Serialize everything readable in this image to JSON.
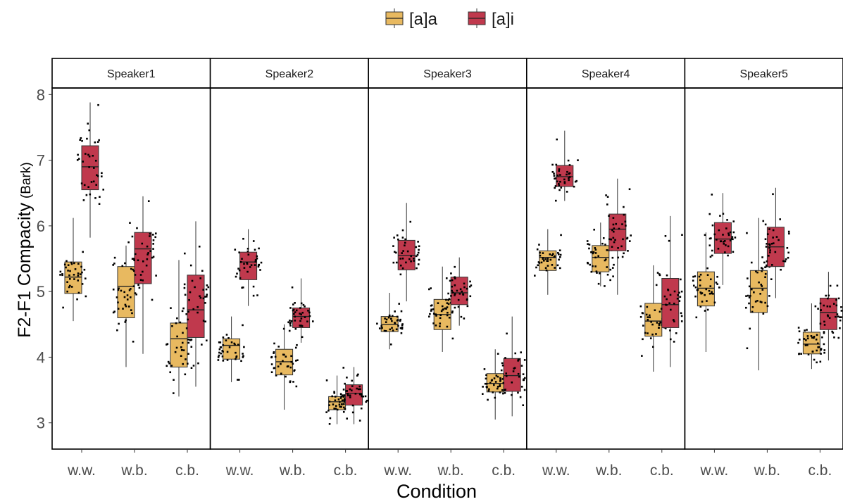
{
  "chart_data": {
    "type": "boxplot",
    "ylabel_main": "F2-F1 Compacity",
    "ylabel_unit": "(Bark)",
    "xlabel": "Condition",
    "ylim": [
      2.6,
      8.1
    ],
    "yticks": [
      3,
      4,
      5,
      6,
      7,
      8
    ],
    "categories": [
      "w.w.",
      "w.b.",
      "c.b."
    ],
    "legend": {
      "position": "top",
      "entries": [
        {
          "label": "[a]a",
          "color": "#E8B960"
        },
        {
          "label": "[a]i",
          "color": "#C0394D"
        }
      ]
    },
    "series_colors": {
      "[a]a": "#E8B960",
      "[a]i": "#C0394D"
    },
    "panels": [
      {
        "title": "Speaker1",
        "boxes": [
          {
            "cat": "w.w.",
            "series": "[a]a",
            "min": 4.55,
            "q1": 4.97,
            "median": 5.22,
            "q3": 5.45,
            "max": 6.12
          },
          {
            "cat": "w.w.",
            "series": "[a]i",
            "min": 5.82,
            "q1": 6.55,
            "median": 6.9,
            "q3": 7.22,
            "max": 7.88
          },
          {
            "cat": "w.b.",
            "series": "[a]a",
            "min": 3.85,
            "q1": 4.6,
            "median": 5.08,
            "q3": 5.38,
            "max": 5.7
          },
          {
            "cat": "w.b.",
            "series": "[a]i",
            "min": 4.05,
            "q1": 5.12,
            "median": 5.65,
            "q3": 5.9,
            "max": 6.45
          },
          {
            "cat": "c.b.",
            "series": "[a]a",
            "min": 3.4,
            "q1": 3.85,
            "median": 4.28,
            "q3": 4.52,
            "max": 5.48
          },
          {
            "cat": "c.b.",
            "series": "[a]i",
            "min": 3.55,
            "q1": 4.3,
            "median": 4.72,
            "q3": 5.25,
            "max": 6.07
          }
        ]
      },
      {
        "title": "Speaker2",
        "boxes": [
          {
            "cat": "w.w.",
            "series": "[a]a",
            "min": 3.62,
            "q1": 3.97,
            "median": 4.18,
            "q3": 4.28,
            "max": 4.62
          },
          {
            "cat": "w.w.",
            "series": "[a]i",
            "min": 4.78,
            "q1": 5.18,
            "median": 5.45,
            "q3": 5.6,
            "max": 5.95
          },
          {
            "cat": "w.b.",
            "series": "[a]a",
            "min": 3.2,
            "q1": 3.73,
            "median": 3.93,
            "q3": 4.12,
            "max": 4.5
          },
          {
            "cat": "w.b.",
            "series": "[a]i",
            "min": 4.22,
            "q1": 4.45,
            "median": 4.62,
            "q3": 4.75,
            "max": 5.2
          },
          {
            "cat": "c.b.",
            "series": "[a]a",
            "min": 2.98,
            "q1": 3.2,
            "median": 3.32,
            "q3": 3.4,
            "max": 3.72
          },
          {
            "cat": "c.b.",
            "series": "[a]i",
            "min": 2.98,
            "q1": 3.27,
            "median": 3.45,
            "q3": 3.58,
            "max": 3.85
          }
        ]
      },
      {
        "title": "Speaker3",
        "boxes": [
          {
            "cat": "w.w.",
            "series": "[a]a",
            "min": 4.12,
            "q1": 4.39,
            "median": 4.5,
            "q3": 4.62,
            "max": 4.98
          },
          {
            "cat": "w.w.",
            "series": "[a]i",
            "min": 4.85,
            "q1": 5.33,
            "median": 5.55,
            "q3": 5.78,
            "max": 6.35
          },
          {
            "cat": "w.b.",
            "series": "[a]a",
            "min": 4.08,
            "q1": 4.42,
            "median": 4.65,
            "q3": 4.88,
            "max": 5.38
          },
          {
            "cat": "w.b.",
            "series": "[a]i",
            "min": 4.48,
            "q1": 4.8,
            "median": 4.98,
            "q3": 5.22,
            "max": 5.52
          },
          {
            "cat": "c.b.",
            "series": "[a]a",
            "min": 3.05,
            "q1": 3.47,
            "median": 3.6,
            "q3": 3.75,
            "max": 4.12
          },
          {
            "cat": "c.b.",
            "series": "[a]i",
            "min": 3.1,
            "q1": 3.48,
            "median": 3.72,
            "q3": 3.98,
            "max": 4.62
          }
        ]
      },
      {
        "title": "Speaker4",
        "boxes": [
          {
            "cat": "w.w.",
            "series": "[a]a",
            "min": 4.95,
            "q1": 5.32,
            "median": 5.52,
            "q3": 5.62,
            "max": 5.95
          },
          {
            "cat": "w.w.",
            "series": "[a]i",
            "min": 6.38,
            "q1": 6.6,
            "median": 6.75,
            "q3": 6.92,
            "max": 7.45
          },
          {
            "cat": "w.b.",
            "series": "[a]a",
            "min": 5.08,
            "q1": 5.3,
            "median": 5.52,
            "q3": 5.7,
            "max": 6.05
          },
          {
            "cat": "w.b.",
            "series": "[a]i",
            "min": 4.95,
            "q1": 5.62,
            "median": 5.95,
            "q3": 6.18,
            "max": 6.72
          },
          {
            "cat": "c.b.",
            "series": "[a]a",
            "min": 3.78,
            "q1": 4.32,
            "median": 4.55,
            "q3": 4.82,
            "max": 5.4
          },
          {
            "cat": "c.b.",
            "series": "[a]i",
            "min": 3.85,
            "q1": 4.45,
            "median": 4.8,
            "q3": 5.2,
            "max": 6.15
          }
        ]
      },
      {
        "title": "Speaker5",
        "boxes": [
          {
            "cat": "w.w.",
            "series": "[a]a",
            "min": 4.08,
            "q1": 4.78,
            "median": 5.05,
            "q3": 5.3,
            "max": 5.9
          },
          {
            "cat": "w.w.",
            "series": "[a]i",
            "min": 5.1,
            "q1": 5.58,
            "median": 5.8,
            "q3": 6.05,
            "max": 6.5
          },
          {
            "cat": "w.b.",
            "series": "[a]a",
            "min": 3.8,
            "q1": 4.68,
            "median": 5.05,
            "q3": 5.32,
            "max": 6.12
          },
          {
            "cat": "w.b.",
            "series": "[a]i",
            "min": 4.9,
            "q1": 5.38,
            "median": 5.68,
            "q3": 5.98,
            "max": 6.58
          },
          {
            "cat": "c.b.",
            "series": "[a]a",
            "min": 3.82,
            "q1": 4.05,
            "median": 4.2,
            "q3": 4.38,
            "max": 4.82
          },
          {
            "cat": "c.b.",
            "series": "[a]i",
            "min": 3.95,
            "q1": 4.42,
            "median": 4.68,
            "q3": 4.9,
            "max": 5.3
          }
        ]
      }
    ]
  }
}
